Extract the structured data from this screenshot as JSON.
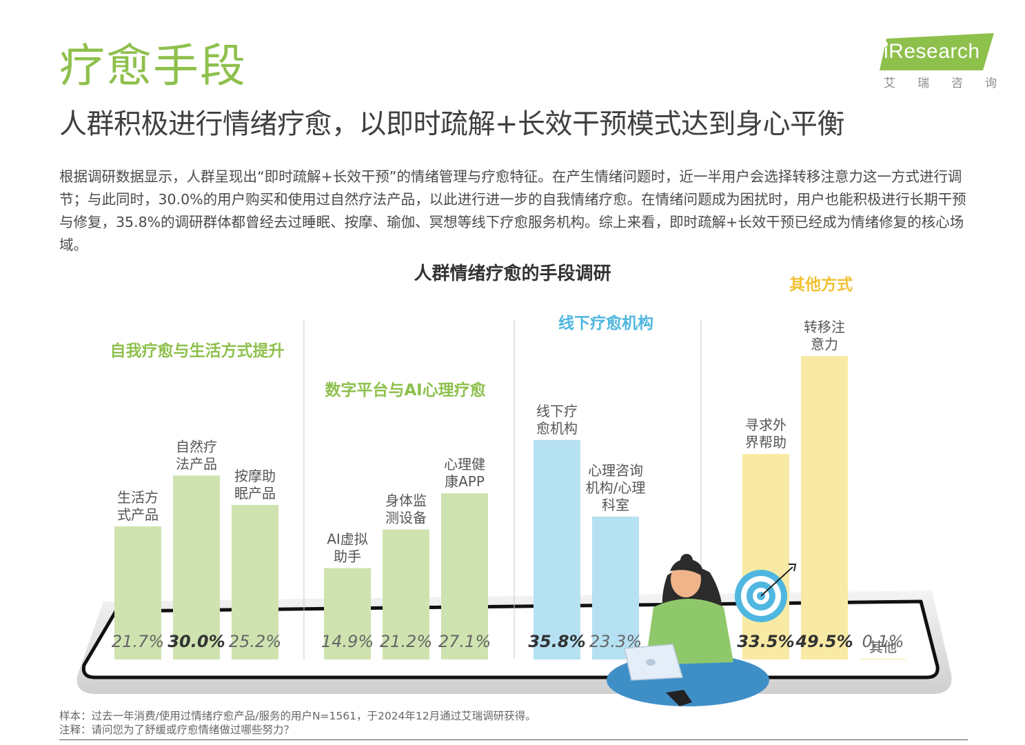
{
  "header": {
    "title": "疗愈手段",
    "subtitle": "人群积极进行情绪疗愈，以即时疏解+长效干预模式达到身心平衡"
  },
  "logo": {
    "wordmark": "iResearch",
    "cn": [
      "艾",
      "瑞",
      "咨",
      "询"
    ]
  },
  "intro": "根据调研数据显示，人群呈现出“即时疏解+长效干预”的情绪管理与疗愈特征。在产生情绪问题时，近一半用户会选择转移注意力这一方式进行调节；与此同时，30.0%的用户购买和使用过自然疗法产品，以此进行进一步的自我情绪疗愈。在情绪问题成为困扰时，用户也能积极进行长期干预与修复，35.8%的调研群体都曾经去过睡眠、按摩、瑜伽、冥想等线下疗愈服务机构。综上来看，即时疏解+长效干预已经成为情绪修复的核心场域。",
  "chart_data": {
    "type": "bar",
    "title": "人群情绪疗愈的手段调研",
    "unit": "%",
    "groups": [
      {
        "name": "自我疗愈与生活方式提升",
        "color": "#cfe3b0",
        "label_color": "#8ec04c",
        "items": [
          {
            "label": "生活方式产品",
            "label_lines": [
              "生活方",
              "式产品"
            ],
            "value": 21.7,
            "value_text": "21.7%",
            "bold": false
          },
          {
            "label": "自然疗法产品",
            "label_lines": [
              "自然疗",
              "法产品"
            ],
            "value": 30.0,
            "value_text": "30.0%",
            "bold": true
          },
          {
            "label": "按摩助眠产品",
            "label_lines": [
              "按摩助",
              "眠产品"
            ],
            "value": 25.2,
            "value_text": "25.2%",
            "bold": false
          }
        ]
      },
      {
        "name": "数字平台与AI心理疗愈",
        "color": "#cfe3b0",
        "label_color": "#8ec04c",
        "items": [
          {
            "label": "AI虚拟助手",
            "label_lines": [
              "AI虚拟",
              "助手"
            ],
            "value": 14.9,
            "value_text": "14.9%",
            "bold": false
          },
          {
            "label": "身体监测设备",
            "label_lines": [
              "身体监",
              "测设备"
            ],
            "value": 21.2,
            "value_text": "21.2%",
            "bold": false
          },
          {
            "label": "心理健康APP",
            "label_lines": [
              "心理健",
              "康APP"
            ],
            "value": 27.1,
            "value_text": "27.1%",
            "bold": false
          }
        ]
      },
      {
        "name": "线下疗愈机构",
        "color": "#b5e1f3",
        "label_color": "#4fb6e0",
        "items": [
          {
            "label": "线下疗愈机构",
            "label_lines": [
              "线下疗",
              "愈机构"
            ],
            "value": 35.8,
            "value_text": "35.8%",
            "bold": true
          },
          {
            "label": "心理咨询机构/心理科室",
            "label_lines": [
              "心理咨询",
              "机构/心理",
              "科室"
            ],
            "value": 23.3,
            "value_text": "23.3%",
            "bold": false
          }
        ]
      },
      {
        "name": "其他方式",
        "color": "#f8eaa4",
        "label_color": "#f1c232",
        "items": [
          {
            "label": "寻求外界帮助",
            "label_lines": [
              "寻求外",
              "界帮助"
            ],
            "value": 33.5,
            "value_text": "33.5%",
            "bold": true
          },
          {
            "label": "转移注意力",
            "label_lines": [
              "转移注",
              "意力"
            ],
            "value": 49.5,
            "value_text": "49.5%",
            "bold": true
          },
          {
            "label": "其他",
            "label_lines": [
              "其他"
            ],
            "value": 0.1,
            "value_text": "0.1%",
            "bold": false
          }
        ]
      }
    ]
  },
  "footnotes": {
    "sample": "样本：过去一年消费/使用过情绪疗愈产品/服务的用户N=1561，于2024年12月通过艾瑞调研获得。",
    "note": "注释：请问您为了舒缓或疗愈情绪做过哪些努力？"
  },
  "colors": {
    "title_green": "#8ec04c",
    "bar_green": "#cfe3b0",
    "bar_blue": "#b5e1f3",
    "bar_yellow": "#f8eaa4",
    "character_shirt": "#8fc86b",
    "character_pants": "#3f8fc7"
  }
}
